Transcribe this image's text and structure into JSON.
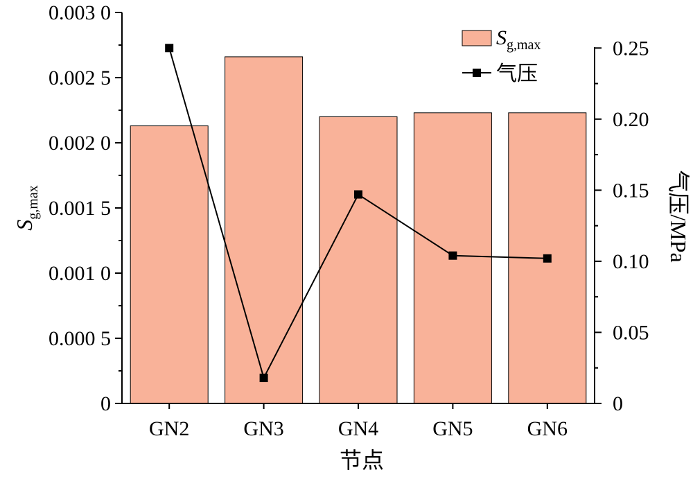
{
  "chart_data": {
    "type": "bar",
    "categories": [
      "GN2",
      "GN3",
      "GN4",
      "GN5",
      "GN6"
    ],
    "series": [
      {
        "name_main": "S",
        "name_sub": "g,max",
        "axis": "left",
        "chart": "bar",
        "color": "#f9b299",
        "values": [
          0.00213,
          0.00266,
          0.0022,
          0.00223,
          0.00223
        ]
      },
      {
        "name": "气压",
        "axis": "right",
        "chart": "line",
        "color": "#000000",
        "marker": "square",
        "values": [
          0.25,
          0.018,
          0.147,
          0.104,
          0.102
        ]
      }
    ],
    "xlabel": "节点",
    "ylabel_main": "S",
    "ylabel_sub": "g,max",
    "y2label": "气压/MPa",
    "ylim": [
      0,
      0.003
    ],
    "y2lim": [
      0,
      0.275
    ],
    "yticks": [
      0,
      0.0005,
      0.001,
      0.0015,
      0.002,
      0.0025,
      0.003
    ],
    "ytick_labels": [
      "0",
      "0.000 5",
      "0.001 0",
      "0.001 5",
      "0.002 0",
      "0.002 5",
      "0.003 0"
    ],
    "y2ticks": [
      0,
      0.05,
      0.1,
      0.15,
      0.2,
      0.25
    ],
    "y2tick_labels": [
      "0",
      "0.05",
      "0.10",
      "0.15",
      "0.20",
      "0.25"
    ],
    "grid": false,
    "legend_position": "top-right"
  }
}
